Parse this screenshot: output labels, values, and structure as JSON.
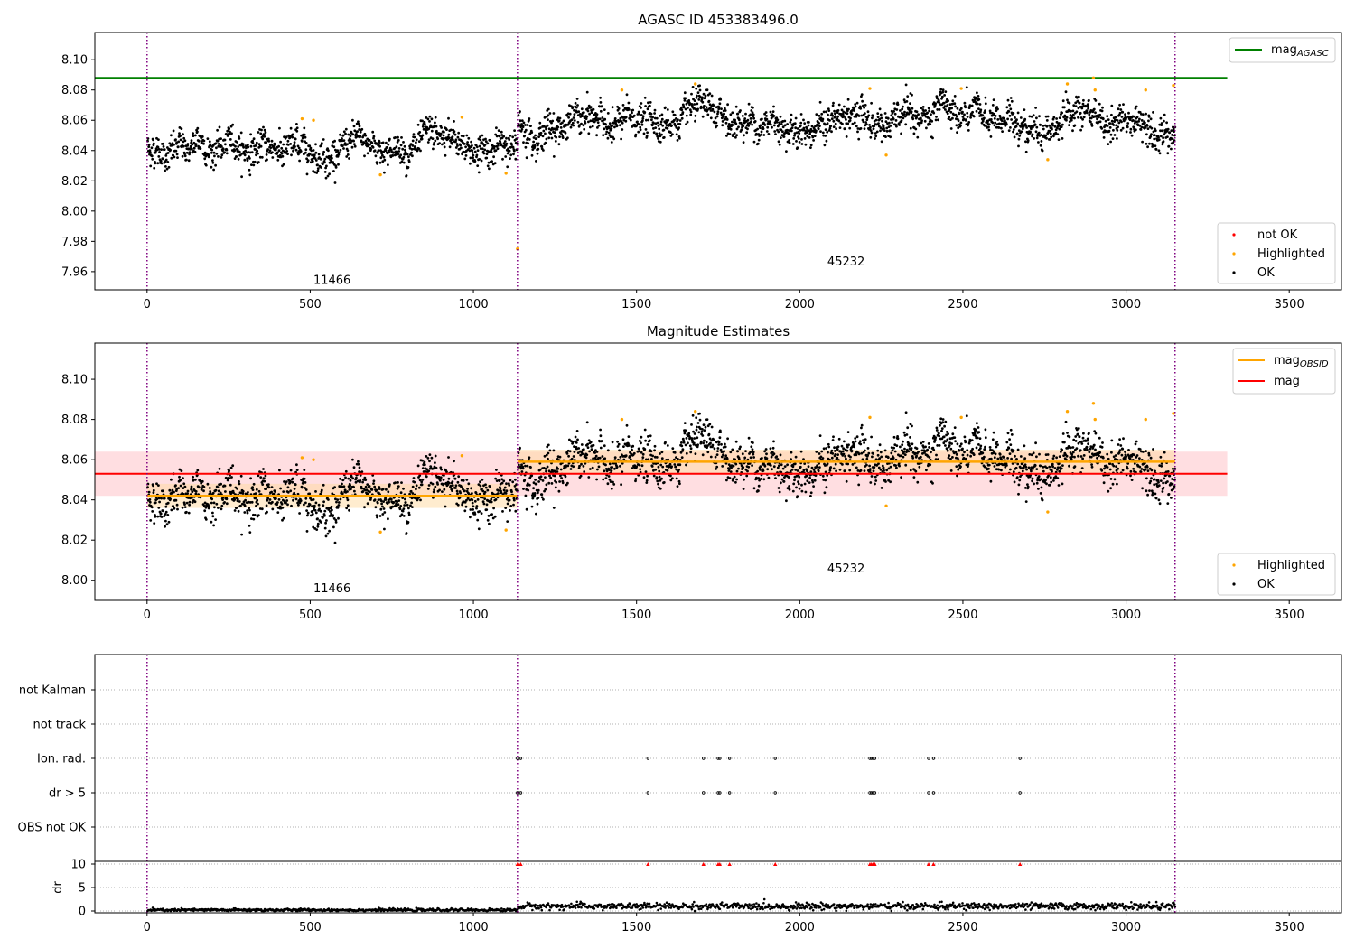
{
  "colors": {
    "ok": "#000000",
    "highlighted": "#ffa500",
    "not_ok": "#ff0000",
    "agasc_line": "#008000",
    "obsid_line": "#ffa500",
    "mag_line": "#ff0000",
    "obs_boundary": "#800080",
    "mag_band": "#ffb6bd"
  },
  "chart_data": [
    {
      "type": "scatter",
      "title": "AGASC ID 453383496.0",
      "xlim": [
        -160,
        3660
      ],
      "ylim": [
        7.948,
        8.118
      ],
      "xticks": [
        0,
        500,
        1000,
        1500,
        2000,
        2500,
        3000,
        3500
      ],
      "xtick_labels": [
        "0",
        "500",
        "1000",
        "1500",
        "2000",
        "2500",
        "3000",
        "3500"
      ],
      "yticks": [
        7.96,
        7.98,
        8.0,
        8.02,
        8.04,
        8.06,
        8.08,
        8.1
      ],
      "ytick_labels": [
        "7.96",
        "7.98",
        "8.00",
        "8.02",
        "8.04",
        "8.06",
        "8.08",
        "8.10"
      ],
      "mag_agasc": 8.088,
      "obs_boundaries": [
        0,
        1135,
        3150
      ],
      "obsids": [
        {
          "label": "11466",
          "x": 567,
          "y": 7.952
        },
        {
          "label": "45232",
          "x": 2142,
          "y": 7.964
        }
      ],
      "segments": [
        {
          "x_start": 0,
          "x_end": 1135,
          "mean": 8.042,
          "std": 0.0065
        },
        {
          "x_start": 1135,
          "x_end": 3150,
          "mean": 8.059,
          "std": 0.0068
        }
      ],
      "highlighted_points": [
        {
          "x": 475,
          "y": 8.061
        },
        {
          "x": 510,
          "y": 8.06
        },
        {
          "x": 715,
          "y": 8.024
        },
        {
          "x": 965,
          "y": 8.062
        },
        {
          "x": 1100,
          "y": 8.025
        },
        {
          "x": 1135,
          "y": 7.975
        },
        {
          "x": 1455,
          "y": 8.08
        },
        {
          "x": 1680,
          "y": 8.084
        },
        {
          "x": 2215,
          "y": 8.081
        },
        {
          "x": 2265,
          "y": 8.037
        },
        {
          "x": 2495,
          "y": 8.081
        },
        {
          "x": 2760,
          "y": 8.034
        },
        {
          "x": 2820,
          "y": 8.084
        },
        {
          "x": 2900,
          "y": 8.088
        },
        {
          "x": 2905,
          "y": 8.08
        },
        {
          "x": 3060,
          "y": 8.08
        },
        {
          "x": 3145,
          "y": 8.083
        }
      ],
      "legend_upper": [
        {
          "label_main": "mag",
          "label_sub": "AGASC"
        }
      ],
      "legend_lower": [
        "not OK",
        "Highlighted",
        "OK"
      ]
    },
    {
      "type": "scatter",
      "title": "Magnitude Estimates",
      "xlim": [
        -160,
        3660
      ],
      "ylim": [
        7.99,
        8.118
      ],
      "xticks": [
        0,
        500,
        1000,
        1500,
        2000,
        2500,
        3000,
        3500
      ],
      "xtick_labels": [
        "0",
        "500",
        "1000",
        "1500",
        "2000",
        "2500",
        "3000",
        "3500"
      ],
      "yticks": [
        8.0,
        8.02,
        8.04,
        8.06,
        8.08,
        8.1
      ],
      "ytick_labels": [
        "8.00",
        "8.02",
        "8.04",
        "8.06",
        "8.08",
        "8.10"
      ],
      "mag": 8.053,
      "mag_band": [
        8.042,
        8.064
      ],
      "obsid_means": [
        {
          "x_start": 0,
          "x_end": 1135,
          "mean": 8.042,
          "band": [
            8.036,
            8.048
          ]
        },
        {
          "x_start": 1135,
          "x_end": 3150,
          "mean": 8.059,
          "band": [
            8.053,
            8.065
          ]
        }
      ],
      "obsids": [
        {
          "label": "11466",
          "x": 567,
          "y": 7.994
        },
        {
          "label": "45232",
          "x": 2142,
          "y": 8.004
        }
      ],
      "legend_upper": [
        {
          "label_main": "mag",
          "label_sub": "OBSID"
        },
        {
          "label_main": "mag",
          "label_sub": ""
        }
      ],
      "legend_lower": [
        "Highlighted",
        "OK"
      ]
    },
    {
      "type": "scatter",
      "title": "",
      "xlim": [
        -160,
        3660
      ],
      "xticks": [
        0,
        500,
        1000,
        1500,
        2000,
        2500,
        3000,
        3500
      ],
      "xtick_labels": [
        "0",
        "500",
        "1000",
        "1500",
        "2000",
        "2500",
        "3000",
        "3500"
      ],
      "flag_rows": [
        "not Kalman",
        "not track",
        "Ion. rad.",
        "dr > 5",
        "OBS not OK"
      ],
      "flagged_x": [
        1135,
        1145,
        1535,
        1705,
        1750,
        1755,
        1785,
        1925,
        2215,
        2220,
        2225,
        2230,
        2395,
        2410,
        2675
      ],
      "dr_ylabel": "dr",
      "dr_yticks": [
        0,
        5,
        10
      ],
      "dr_ytick_labels": [
        "0",
        "5",
        "10"
      ],
      "dr_ylim": [
        -0.5,
        10.5
      ],
      "dr_segments": [
        {
          "x_start": 0,
          "x_end": 1135,
          "level": 0.2,
          "spread": 0.15
        },
        {
          "x_start": 1135,
          "x_end": 3150,
          "level": 1.0,
          "spread": 0.35
        }
      ]
    }
  ]
}
